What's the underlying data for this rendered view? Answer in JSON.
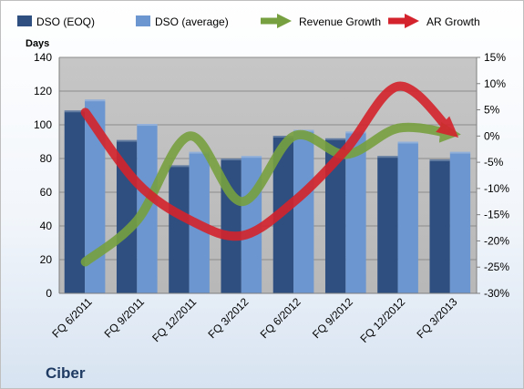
{
  "chart_data": {
    "type": "bar",
    "categories": [
      "FQ 6/2011",
      "FQ 9/2011",
      "FQ 12/2011",
      "FQ 3/2012",
      "FQ 6/2012",
      "FQ 9/2012",
      "FQ 12/2012",
      "FQ 3/2013"
    ],
    "series": [
      {
        "name": "DSO (EOQ)",
        "type": "bar",
        "axis": "left",
        "color": "#2e4f80",
        "values": [
          108.5,
          91,
          76,
          80,
          93.5,
          92,
          81.5,
          79.5
        ]
      },
      {
        "name": "DSO (average)",
        "type": "bar",
        "axis": "left",
        "color": "#6b96cf",
        "values": [
          115,
          100.5,
          84,
          81.5,
          97,
          96,
          90,
          84
        ]
      },
      {
        "name": "Revenue Growth",
        "type": "line",
        "axis": "right",
        "color": "#77a040",
        "values": [
          -24,
          -16,
          0,
          -12.5,
          0,
          -3.5,
          1.5,
          0.5
        ]
      },
      {
        "name": "AR Growth",
        "type": "line",
        "axis": "right",
        "color": "#d4232c",
        "values": [
          4.5,
          -9,
          -16,
          -19,
          -12.5,
          -2.5,
          9.5,
          1
        ]
      }
    ],
    "ylabel": "Days",
    "ylim": [
      0,
      140
    ],
    "yticks": [
      "0",
      "20",
      "40",
      "60",
      "80",
      "100",
      "120",
      "140"
    ],
    "y2lim": [
      -30,
      15
    ],
    "y2ticks": [
      "-30%",
      "-25%",
      "-20%",
      "-15%",
      "-10%",
      "-5%",
      "0%",
      "5%",
      "10%",
      "15%"
    ],
    "plot_background": "#c0c0c0",
    "grid": true,
    "legend_position": "top",
    "annotation": "Ciber"
  }
}
